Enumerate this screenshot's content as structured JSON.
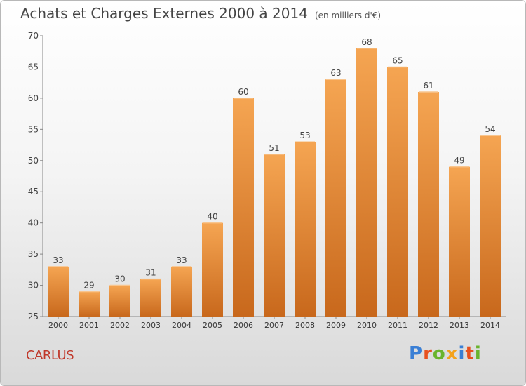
{
  "header": {
    "title": "Achats et Charges Externes 2000 à 2014",
    "unit": "(en milliers d'€)"
  },
  "footer": {
    "place": "CARLUS",
    "brand": "Proxiti",
    "brand_colors": [
      "#3a7fd5",
      "#e8501e",
      "#6ab42d",
      "#f4a21b",
      "#3a7fd5",
      "#e8501e",
      "#6ab42d"
    ]
  },
  "colors": {
    "bar_top": "#f5a552",
    "bar_bottom": "#c8681c",
    "title": "#444444",
    "place": "#c0392b"
  },
  "chart_data": {
    "type": "bar",
    "title": "Achats et Charges Externes 2000 à 2014",
    "subtitle": "(en milliers d'€)",
    "categories": [
      "2000",
      "2001",
      "2002",
      "2003",
      "2004",
      "2005",
      "2006",
      "2007",
      "2008",
      "2009",
      "2010",
      "2011",
      "2012",
      "2013",
      "2014"
    ],
    "values": [
      33,
      29,
      30,
      31,
      33,
      40,
      60,
      51,
      53,
      63,
      68,
      65,
      61,
      49,
      54
    ],
    "ylim": [
      25,
      70
    ],
    "yticks": [
      25,
      30,
      35,
      40,
      45,
      50,
      55,
      60,
      65,
      70
    ],
    "xlabel": "",
    "ylabel": "",
    "grid": "none",
    "data_labels": true
  }
}
